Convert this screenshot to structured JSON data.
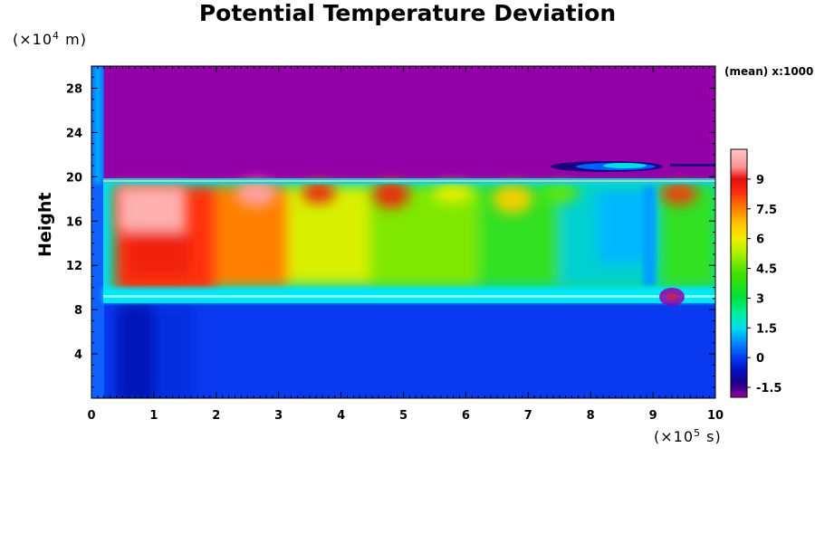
{
  "chart_data": {
    "type": "heatmap",
    "title": "Potential Temperature Deviation",
    "ylabel": "Height",
    "y_unit_prefix": "(×10",
    "y_unit_exp": "4",
    "y_unit_suffix": " m)",
    "x_unit_prefix": "(×10",
    "x_unit_exp": "5",
    "x_unit_suffix": " s)",
    "xlim": [
      0,
      10
    ],
    "ylim": [
      0,
      30
    ],
    "x_ticks": [
      "0",
      "1",
      "2",
      "3",
      "4",
      "5",
      "6",
      "7",
      "8",
      "9",
      "10"
    ],
    "y_ticks": [
      {
        "value": 4,
        "label": "4"
      },
      {
        "value": 8,
        "label": "8"
      },
      {
        "value": 12,
        "label": "12"
      },
      {
        "value": 16,
        "label": "16"
      },
      {
        "value": 20,
        "label": "20"
      },
      {
        "value": 24,
        "label": "24"
      },
      {
        "value": 28,
        "label": "28"
      }
    ],
    "colorbar": {
      "note": "(mean) x:1000",
      "range": [
        -2,
        10.5
      ],
      "tick_values": [
        9,
        7.5,
        6,
        4.5,
        3,
        1.5,
        0,
        -1.5
      ],
      "tick_labels": [
        "9",
        "7.5",
        "6",
        "4.5",
        "3",
        "1.5",
        "0",
        "-1.5"
      ],
      "stops": [
        {
          "value": -2.0,
          "color": "#9400a8"
        },
        {
          "value": -1.3,
          "color": "#1a0080"
        },
        {
          "value": -0.6,
          "color": "#0010c8"
        },
        {
          "value": 0.0,
          "color": "#0a3af0"
        },
        {
          "value": 0.8,
          "color": "#0090ff"
        },
        {
          "value": 1.5,
          "color": "#00ddf0"
        },
        {
          "value": 2.2,
          "color": "#00f0a0"
        },
        {
          "value": 3.0,
          "color": "#00e040"
        },
        {
          "value": 4.2,
          "color": "#40e000"
        },
        {
          "value": 5.4,
          "color": "#b8f000"
        },
        {
          "value": 6.0,
          "color": "#f0f000"
        },
        {
          "value": 6.8,
          "color": "#ffc000"
        },
        {
          "value": 7.5,
          "color": "#ff8000"
        },
        {
          "value": 8.3,
          "color": "#ff3010"
        },
        {
          "value": 9.0,
          "color": "#e01010"
        },
        {
          "value": 9.6,
          "color": "#ff9090"
        },
        {
          "value": 10.5,
          "color": "#ffc8c8"
        }
      ]
    }
  }
}
